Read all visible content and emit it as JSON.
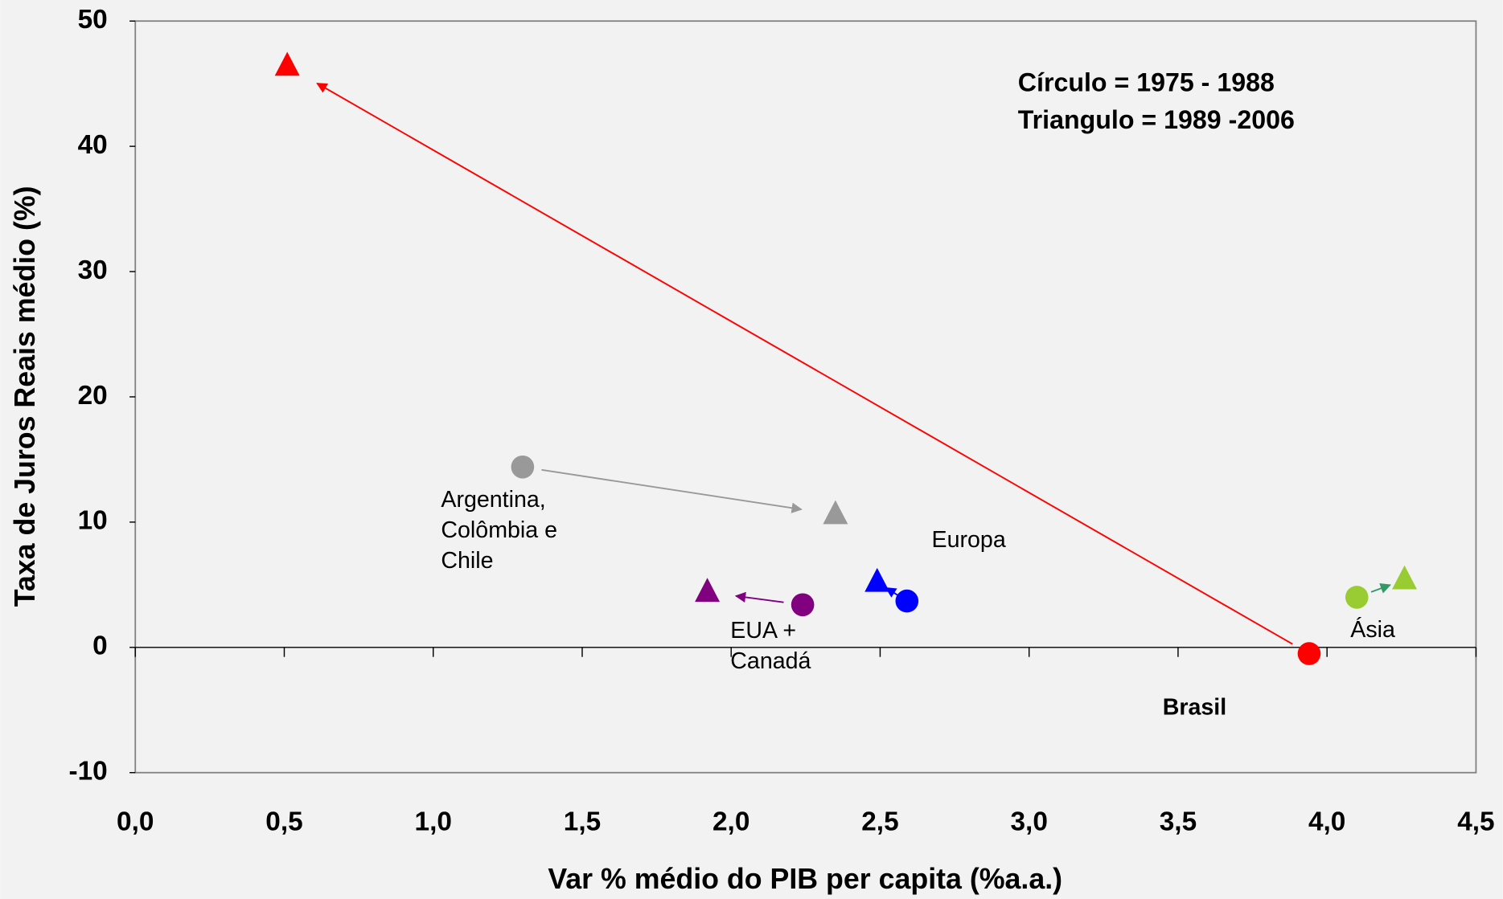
{
  "chart_data": {
    "type": "scatter",
    "x_label": "Var % médio do PIB per capita (%a.a.)",
    "y_label": "Taxa de Juros Reais médio (%)",
    "annotations": [
      "Círculo = 1975 - 1988",
      "Triangulo = 1989 -2006"
    ],
    "xlim": [
      0,
      4.5
    ],
    "xticks": [
      {
        "value": 0,
        "label": "0,0"
      },
      {
        "value": 0.5,
        "label": "0,5"
      },
      {
        "value": 1,
        "label": "1,0"
      },
      {
        "value": 1.5,
        "label": "1,5"
      },
      {
        "value": 2,
        "label": "2,0"
      },
      {
        "value": 2.5,
        "label": "2,5"
      },
      {
        "value": 3,
        "label": "3,0"
      },
      {
        "value": 3.5,
        "label": "3,5"
      },
      {
        "value": 4,
        "label": "4,0"
      },
      {
        "value": 4.5,
        "label": "4,5"
      }
    ],
    "ylim": [
      -10,
      50
    ],
    "yticks": [
      -10,
      0,
      10,
      20,
      30,
      40,
      50
    ],
    "series": [
      {
        "label_lines": [
          "Brasil"
        ],
        "color": "#ff0000",
        "arrow_color": "#ff0000",
        "x": [
          3.94,
          0.51
        ],
        "values": [
          -0.5,
          46.4
        ]
      },
      {
        "label_lines": [
          "Argentina,",
          "Colômbia e",
          "Chile"
        ],
        "color": "#999999",
        "arrow_color": "#999999",
        "x": [
          1.3,
          2.35
        ],
        "values": [
          14.4,
          10.6
        ]
      },
      {
        "label_lines": [
          "EUA +",
          "Canadá"
        ],
        "color": "#800080",
        "arrow_color": "#800080",
        "x": [
          2.24,
          1.92
        ],
        "values": [
          3.4,
          4.4
        ]
      },
      {
        "label_lines": [
          "Europa"
        ],
        "color": "#0000ff",
        "arrow_color": "#0000ff",
        "x": [
          2.59,
          2.49
        ],
        "values": [
          3.7,
          5.2
        ]
      },
      {
        "label_lines": [
          "Ásia"
        ],
        "color": "#99cc33",
        "arrow_color": "#339966",
        "x": [
          4.1,
          4.26
        ],
        "values": [
          4.0,
          5.4
        ]
      }
    ]
  }
}
